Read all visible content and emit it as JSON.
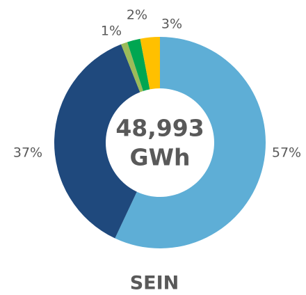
{
  "chart_data": {
    "type": "donut",
    "title": "SEIN",
    "center_value": "48,993",
    "center_unit": "GWh",
    "categories": [
      null,
      null,
      null,
      null,
      null
    ],
    "values": [
      57,
      37,
      1,
      2,
      3
    ],
    "value_labels": [
      "57%",
      "37%",
      "1%",
      "2%",
      "3%"
    ],
    "colors": [
      "#5eaed6",
      "#1f497d",
      "#9bbb59",
      "#00a651",
      "#ffc000"
    ]
  }
}
